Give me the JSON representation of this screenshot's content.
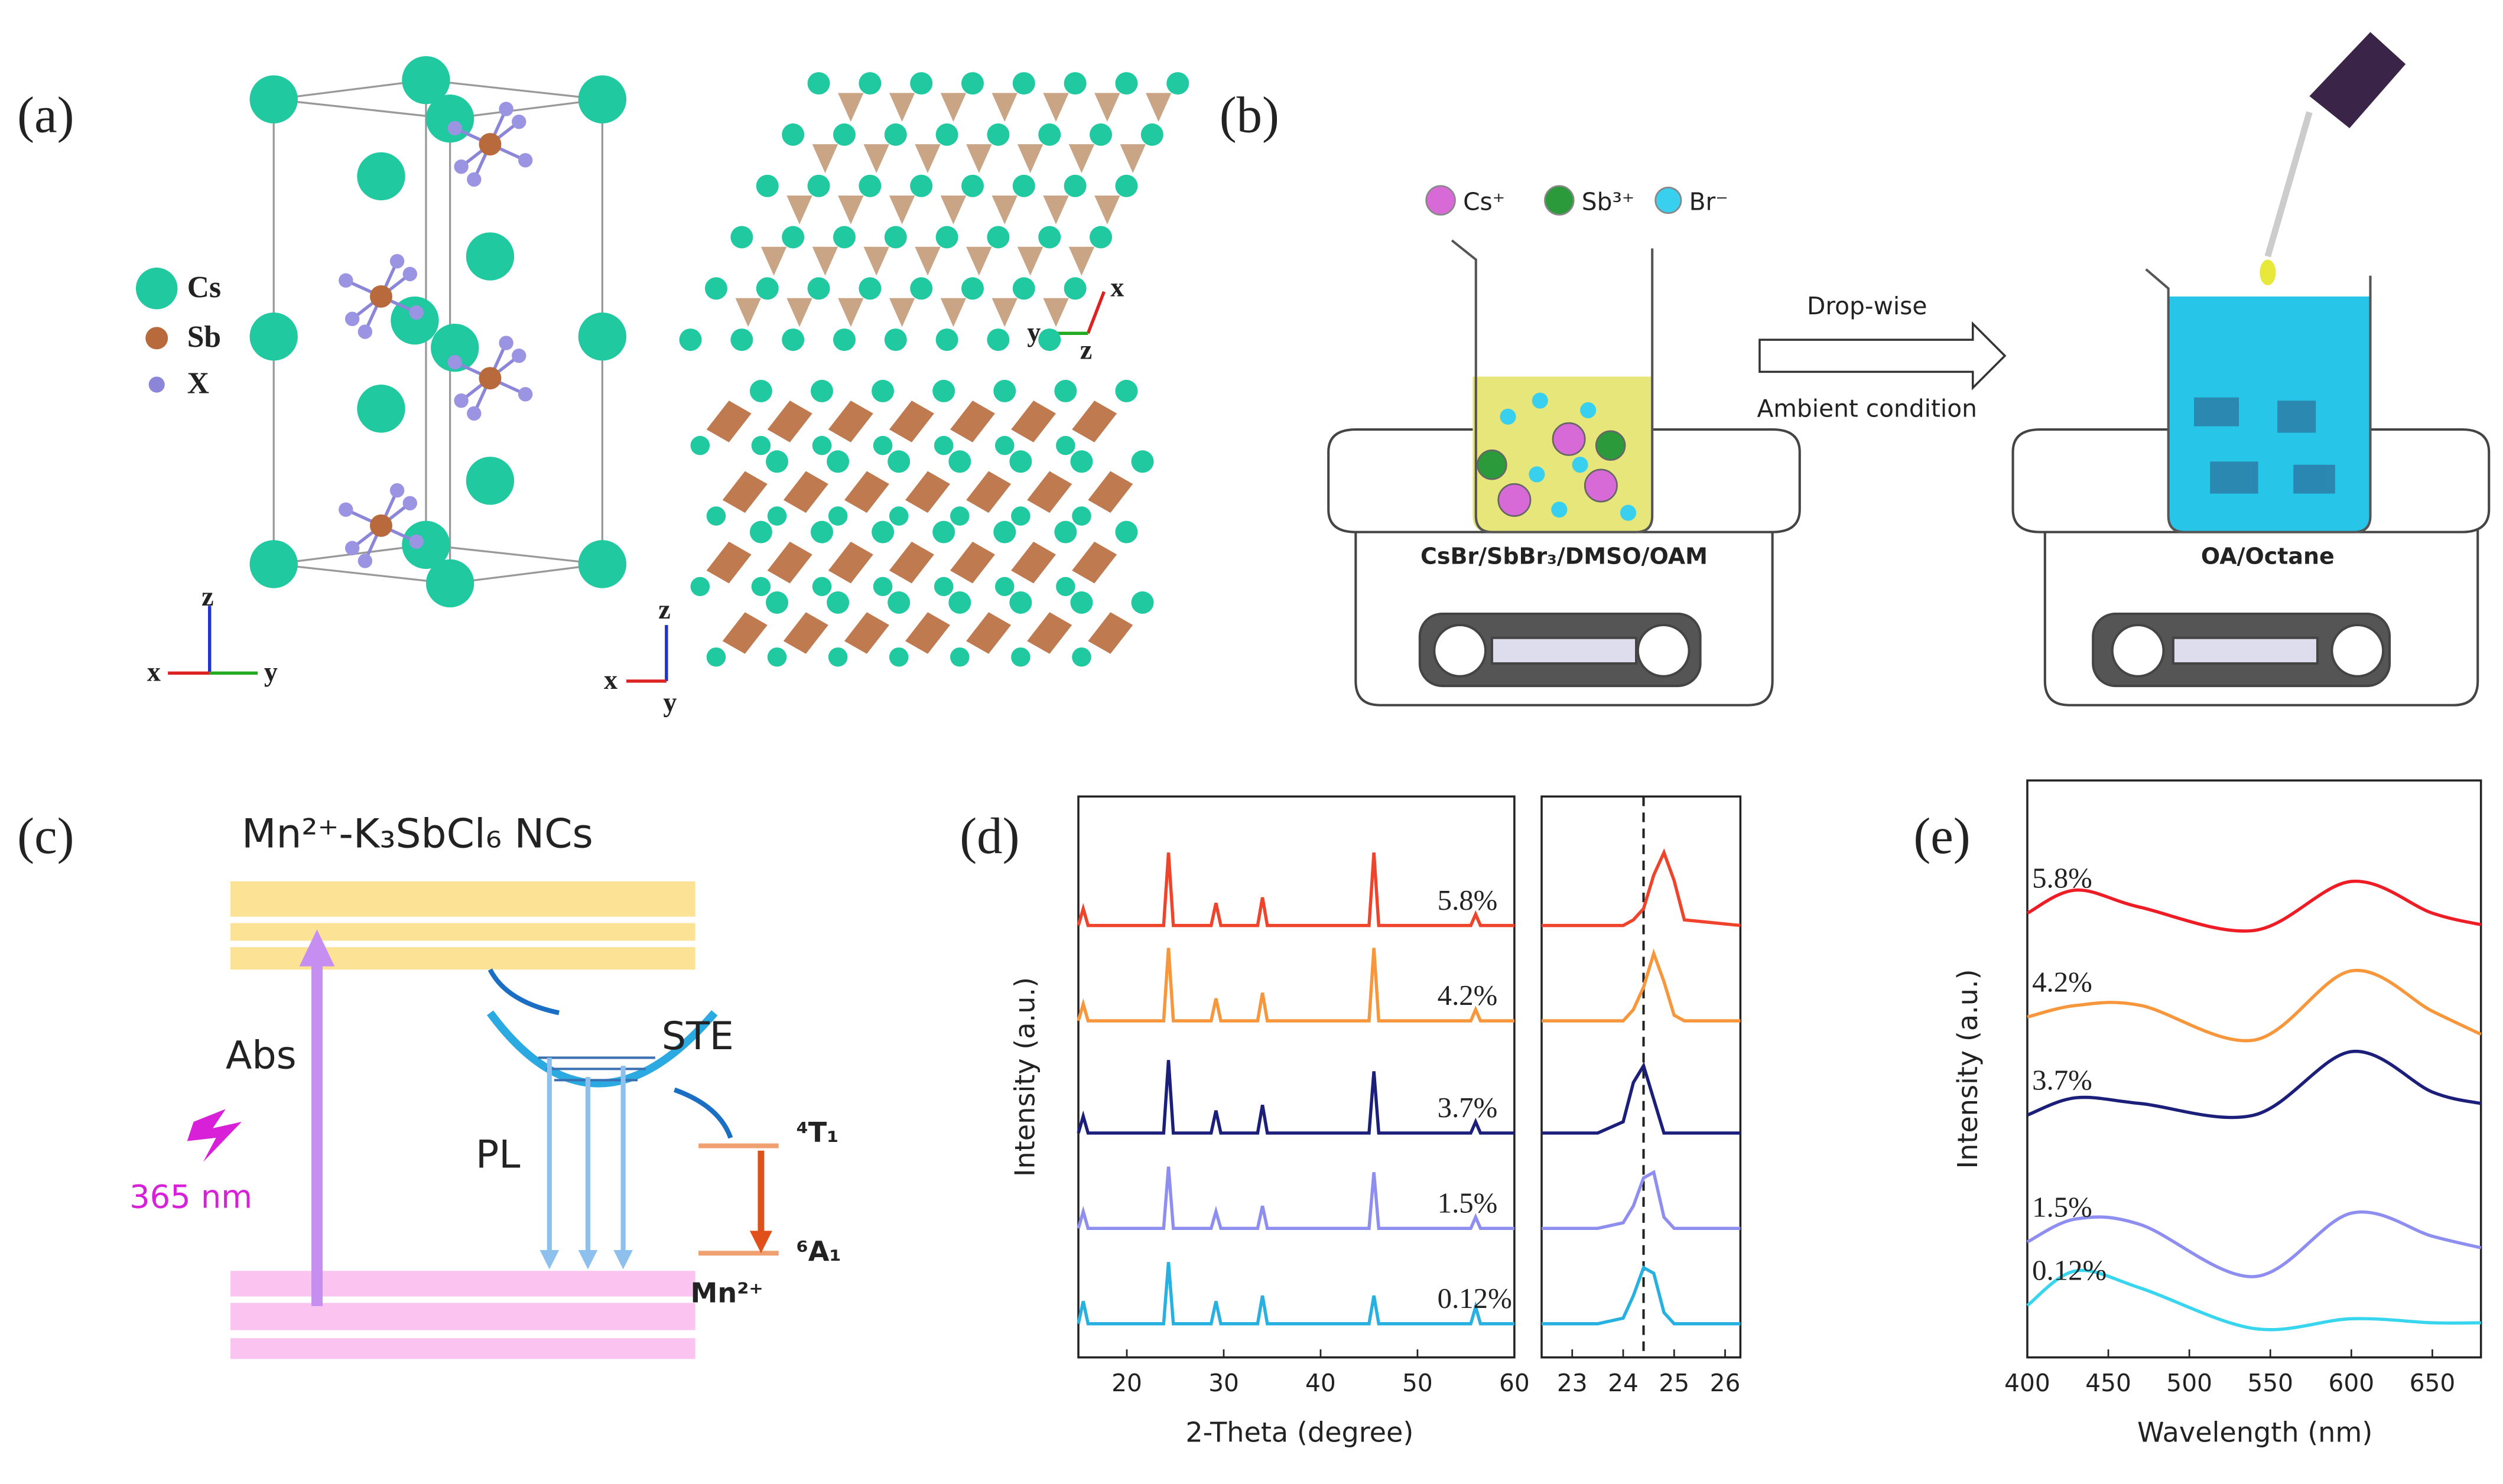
{
  "panels": {
    "a": {
      "label": "(a)",
      "legend": [
        "Cs",
        "Sb",
        "X"
      ],
      "axes_left": [
        "z",
        "x",
        "y"
      ],
      "axes_top": [
        "x",
        "y",
        "z"
      ],
      "axes_bottom": [
        "z",
        "x",
        "y"
      ]
    },
    "b": {
      "label": "(b)",
      "ions": [
        "Cs⁺",
        "Sb³⁺",
        "Br⁻"
      ],
      "arrow_top": "Drop-wise",
      "arrow_bottom": "Ambient condition",
      "left_solution": "CsBr/SbBr₃/DMSO/OAM",
      "right_solution": "OA/Octane"
    },
    "c": {
      "label": "(c)",
      "title": "Mn²⁺-K₃SbCl₆ NCs",
      "abs": "Abs",
      "excitation": "365 nm",
      "pl": "PL",
      "ste": "STE",
      "upper_level": "⁴T₁",
      "lower_level": "⁶A₁",
      "ion": "Mn²⁺"
    },
    "d": {
      "label": "(d)"
    },
    "e": {
      "label": "(e)"
    }
  },
  "chart_data": [
    {
      "type": "line",
      "y_label": "Intensity (a.u.)",
      "x_label": "2-Theta (degree)",
      "xlim": [
        15,
        60
      ],
      "xticks": [
        20,
        30,
        40,
        50,
        60
      ],
      "ylim": [
        0,
        100
      ],
      "x": [
        15,
        15.5,
        16,
        20,
        23.8,
        24.3,
        24.8,
        28.7,
        29.2,
        29.7,
        33.5,
        34,
        34.5,
        45,
        45.5,
        46,
        55.5,
        56,
        56.5,
        60
      ],
      "series": [
        {
          "name": "5.8%",
          "color": "#f0432b",
          "values": [
            77,
            80,
            77,
            77,
            77,
            90,
            77,
            77,
            81,
            77,
            77,
            82,
            77,
            77,
            90,
            77,
            77,
            79,
            77,
            77
          ]
        },
        {
          "name": "4.2%",
          "color": "#f7963b",
          "values": [
            60,
            63,
            60,
            60,
            60,
            73,
            60,
            60,
            64,
            60,
            60,
            65,
            60,
            60,
            73,
            60,
            60,
            62,
            60,
            60
          ]
        },
        {
          "name": "3.7%",
          "color": "#1b1f7a",
          "values": [
            40,
            43,
            40,
            40,
            40,
            53,
            40,
            40,
            44,
            40,
            40,
            45,
            40,
            40,
            51,
            40,
            40,
            42,
            40,
            40
          ]
        },
        {
          "name": "1.5%",
          "color": "#8e8ef0",
          "values": [
            23,
            26,
            23,
            23,
            23,
            34,
            23,
            23,
            26,
            23,
            23,
            27,
            23,
            23,
            33,
            23,
            23,
            25,
            23,
            23
          ]
        },
        {
          "name": "0.12%",
          "color": "#27b0e0",
          "values": [
            6,
            10,
            6,
            6,
            6,
            17,
            6,
            6,
            10,
            6,
            6,
            11,
            6,
            6,
            11,
            6,
            6,
            9,
            6,
            6
          ]
        }
      ]
    },
    {
      "type": "line",
      "xlim": [
        22.4,
        26.3
      ],
      "xticks": [
        23,
        24,
        25,
        26
      ],
      "ylim": [
        0,
        100
      ],
      "reference_x": 24.4,
      "x": [
        22.4,
        23.5,
        24,
        24.2,
        24.4,
        24.6,
        24.8,
        25,
        25.2,
        26.3
      ],
      "series": [
        {
          "color": "#f0432b",
          "values": [
            77,
            77,
            77,
            78,
            80,
            86,
            90,
            85,
            78,
            77
          ]
        },
        {
          "color": "#f7963b",
          "values": [
            60,
            60,
            60,
            62,
            66,
            72,
            67,
            61,
            60,
            60
          ]
        },
        {
          "color": "#1b1f7a",
          "values": [
            40,
            40,
            42,
            49,
            52,
            46,
            40,
            40,
            40,
            40
          ]
        },
        {
          "color": "#8e8ef0",
          "values": [
            23,
            23,
            24,
            27,
            32,
            33,
            25,
            23,
            23,
            23
          ]
        },
        {
          "color": "#27b0e0",
          "values": [
            6,
            6,
            7,
            11,
            16,
            15,
            8,
            6,
            6,
            6
          ]
        }
      ]
    },
    {
      "type": "line",
      "y_label": "Intensity (a.u.)",
      "x_label": "Wavelength (nm)",
      "xlim": [
        400,
        680
      ],
      "xticks": [
        400,
        450,
        500,
        550,
        600,
        650
      ],
      "ylim": [
        0,
        100
      ],
      "x": [
        400,
        430,
        470,
        540,
        600,
        650,
        680
      ],
      "series": [
        {
          "name": "5.8%",
          "color": "#ee1c25",
          "values": [
            77,
            81,
            78,
            74,
            82.5,
            77,
            75
          ]
        },
        {
          "name": "4.2%",
          "color": "#f7963b",
          "values": [
            59,
            61,
            61,
            55,
            67,
            60,
            56
          ]
        },
        {
          "name": "3.7%",
          "color": "#1b1f7a",
          "values": [
            42,
            45,
            44,
            42,
            53,
            46,
            44
          ]
        },
        {
          "name": "1.5%",
          "color": "#8e8ef0",
          "values": [
            20,
            24,
            23,
            14,
            25,
            21,
            19
          ]
        },
        {
          "name": "0.12%",
          "color": "#38d6ee",
          "values": [
            9,
            15,
            12,
            5,
            6.7,
            6,
            6
          ]
        }
      ]
    }
  ]
}
